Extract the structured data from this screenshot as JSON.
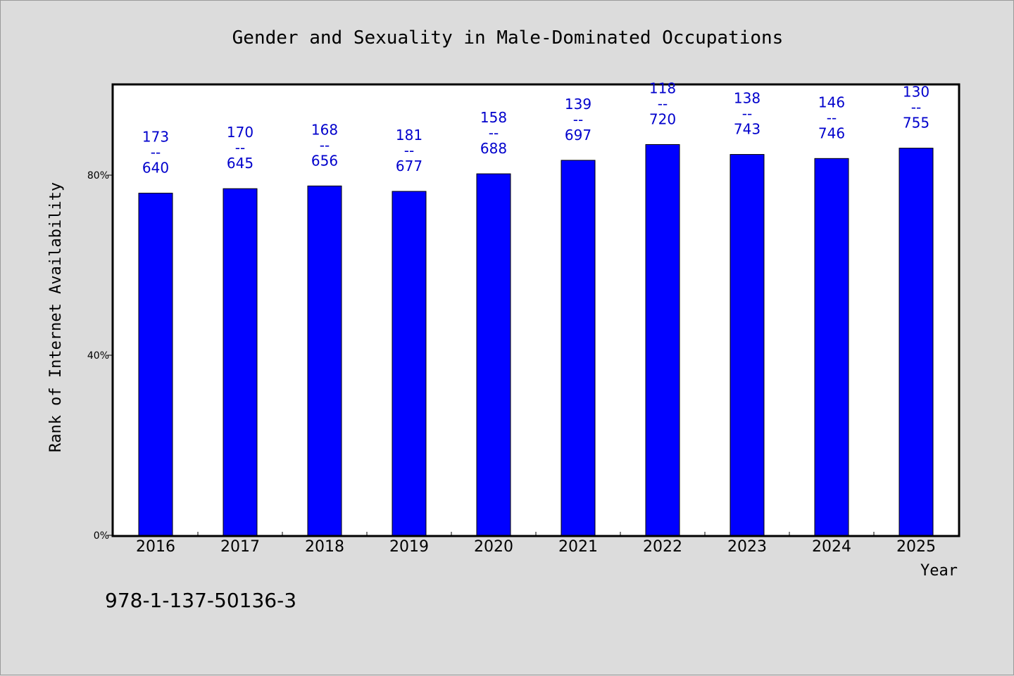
{
  "chart_data": {
    "type": "bar",
    "title": "Gender and Sexuality in Male-Dominated Occupations",
    "xlabel": "Year",
    "ylabel": "Rank of Internet Availability",
    "categories": [
      "2016",
      "2017",
      "2018",
      "2019",
      "2020",
      "2021",
      "2022",
      "2023",
      "2024",
      "2025"
    ],
    "values": [
      76,
      77,
      77.6,
      76.4,
      80.3,
      83.3,
      86.8,
      84.6,
      83.7,
      86.0
    ],
    "labels": [
      {
        "top": "173",
        "sep": "--",
        "bottom": "640"
      },
      {
        "top": "170",
        "sep": "--",
        "bottom": "645"
      },
      {
        "top": "168",
        "sep": "--",
        "bottom": "656"
      },
      {
        "top": "181",
        "sep": "--",
        "bottom": "677"
      },
      {
        "top": "158",
        "sep": "--",
        "bottom": "688"
      },
      {
        "top": "139",
        "sep": "--",
        "bottom": "697"
      },
      {
        "top": "118",
        "sep": "--",
        "bottom": "720"
      },
      {
        "top": "138",
        "sep": "--",
        "bottom": "743"
      },
      {
        "top": "146",
        "sep": "--",
        "bottom": "746"
      },
      {
        "top": "130",
        "sep": "--",
        "bottom": "755"
      }
    ],
    "ylim": [
      0,
      100
    ],
    "yticks": [
      {
        "value": 0,
        "label": "0%"
      },
      {
        "value": 40,
        "label": "40%"
      },
      {
        "value": 80,
        "label": "80%"
      }
    ],
    "grid": false,
    "bar_color": "#0000ff",
    "label_color": "#0000cc"
  },
  "footer": {
    "isbn": "978-1-137-50136-3"
  }
}
